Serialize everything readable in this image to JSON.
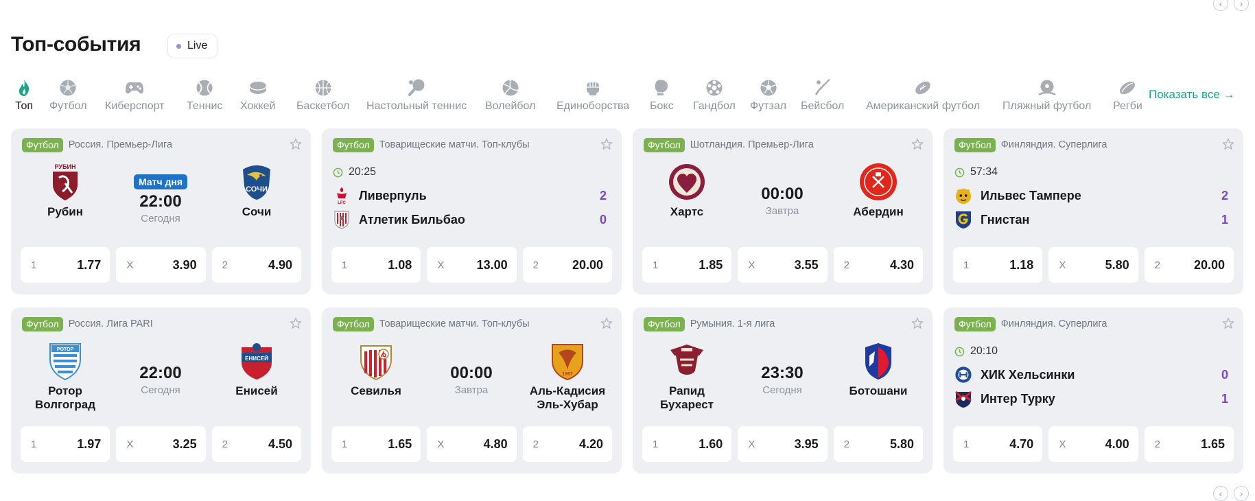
{
  "header": {
    "title": "Топ-события",
    "live_label": "Live"
  },
  "nav": {
    "prev_icon": "‹",
    "next_icon": "›",
    "show_all": "Показать все →"
  },
  "sports": [
    {
      "label": "Топ",
      "icon": "flame-icon"
    },
    {
      "label": "Футбол",
      "icon": "soccer-ball-icon"
    },
    {
      "label": "Киберспорт",
      "icon": "gamepad-icon"
    },
    {
      "label": "Теннис",
      "icon": "tennis-ball-icon"
    },
    {
      "label": "Хоккей",
      "icon": "hockey-puck-icon"
    },
    {
      "label": "Баскетбол",
      "icon": "basketball-icon"
    },
    {
      "label": "Настольный теннис",
      "icon": "ping-pong-icon"
    },
    {
      "label": "Волейбол",
      "icon": "volleyball-icon"
    },
    {
      "label": "Единоборства",
      "icon": "fist-icon"
    },
    {
      "label": "Бокс",
      "icon": "boxing-glove-icon"
    },
    {
      "label": "Гандбол",
      "icon": "handball-icon"
    },
    {
      "label": "Футзал",
      "icon": "futsal-ball-icon"
    },
    {
      "label": "Бейсбол",
      "icon": "baseball-bat-icon"
    },
    {
      "label": "Американский футбол",
      "icon": "american-football-icon"
    },
    {
      "label": "Пляжный футбол",
      "icon": "beach-soccer-icon"
    },
    {
      "label": "Регби",
      "icon": "rugby-ball-icon"
    }
  ],
  "events": [
    {
      "sport": "Футбол",
      "league": "Россия. Премьер-Лига",
      "layout": "prematch",
      "badge": "Матч дня",
      "time": "22:00",
      "day": "Сегодня",
      "home": "Рубин",
      "away": "Сочи",
      "odds": [
        {
          "h": "1",
          "v": "1.77"
        },
        {
          "h": "X",
          "v": "3.90"
        },
        {
          "h": "2",
          "v": "4.90"
        }
      ]
    },
    {
      "sport": "Футбол",
      "league": "Товарищеские матчи. Топ-клубы",
      "layout": "live",
      "clock": "20:25",
      "home": "Ливерпуль",
      "away": "Атлетик Бильбао",
      "home_score": "2",
      "away_score": "0",
      "odds": [
        {
          "h": "1",
          "v": "1.08"
        },
        {
          "h": "X",
          "v": "13.00"
        },
        {
          "h": "2",
          "v": "20.00"
        }
      ]
    },
    {
      "sport": "Футбол",
      "league": "Шотландия. Премьер-Лига",
      "layout": "prematch",
      "time": "00:00",
      "day": "Завтра",
      "home": "Хартс",
      "away": "Абердин",
      "odds": [
        {
          "h": "1",
          "v": "1.85"
        },
        {
          "h": "X",
          "v": "3.55"
        },
        {
          "h": "2",
          "v": "4.30"
        }
      ]
    },
    {
      "sport": "Футбол",
      "league": "Финляндия. Суперлига",
      "layout": "live",
      "clock": "57:34",
      "home": "Ильвес Тампере",
      "away": "Гнистан",
      "home_score": "2",
      "away_score": "1",
      "odds": [
        {
          "h": "1",
          "v": "1.18"
        },
        {
          "h": "X",
          "v": "5.80"
        },
        {
          "h": "2",
          "v": "20.00"
        }
      ]
    },
    {
      "sport": "Футбол",
      "league": "Россия. Лига PARI",
      "layout": "prematch",
      "time": "22:00",
      "day": "Сегодня",
      "home": "Ротор Волгоград",
      "away": "Енисей",
      "odds": [
        {
          "h": "1",
          "v": "1.97"
        },
        {
          "h": "X",
          "v": "3.25"
        },
        {
          "h": "2",
          "v": "4.50"
        }
      ]
    },
    {
      "sport": "Футбол",
      "league": "Товарищеские матчи. Топ-клубы",
      "layout": "prematch",
      "time": "00:00",
      "day": "Завтра",
      "home": "Севилья",
      "away": "Аль-Кадисия Эль-Хубар",
      "odds": [
        {
          "h": "1",
          "v": "1.65"
        },
        {
          "h": "X",
          "v": "4.80"
        },
        {
          "h": "2",
          "v": "4.20"
        }
      ]
    },
    {
      "sport": "Футбол",
      "league": "Румыния. 1-я лига",
      "layout": "prematch",
      "time": "23:30",
      "day": "Сегодня",
      "home": "Рапид Бухарест",
      "away": "Ботошани",
      "odds": [
        {
          "h": "1",
          "v": "1.60"
        },
        {
          "h": "X",
          "v": "3.95"
        },
        {
          "h": "2",
          "v": "5.80"
        }
      ]
    },
    {
      "sport": "Футбол",
      "league": "Финляндия. Суперлига",
      "layout": "live",
      "clock": "20:10",
      "home": "ХИК Хельсинки",
      "away": "Интер Турку",
      "home_score": "0",
      "away_score": "1",
      "odds": [
        {
          "h": "1",
          "v": "4.70"
        },
        {
          "h": "X",
          "v": "4.00"
        },
        {
          "h": "2",
          "v": "1.65"
        }
      ]
    }
  ],
  "logos": {
    "rubin": {
      "text": "РУБИН",
      "color": "#8c1c2c"
    },
    "sochi": {
      "text": "СОЧИ",
      "color": "#1f4e8c"
    },
    "rotor": {
      "text": "РОТОР",
      "color": "#3a8fd6"
    },
    "enisey": {
      "text": "ЕНИСЕЙ",
      "color": "#c8202f"
    },
    "alqadsiah": {
      "text": "1967",
      "color": "#e6a21c"
    },
    "liverpool": {
      "text": "LFC",
      "color": "#c8102e"
    }
  }
}
